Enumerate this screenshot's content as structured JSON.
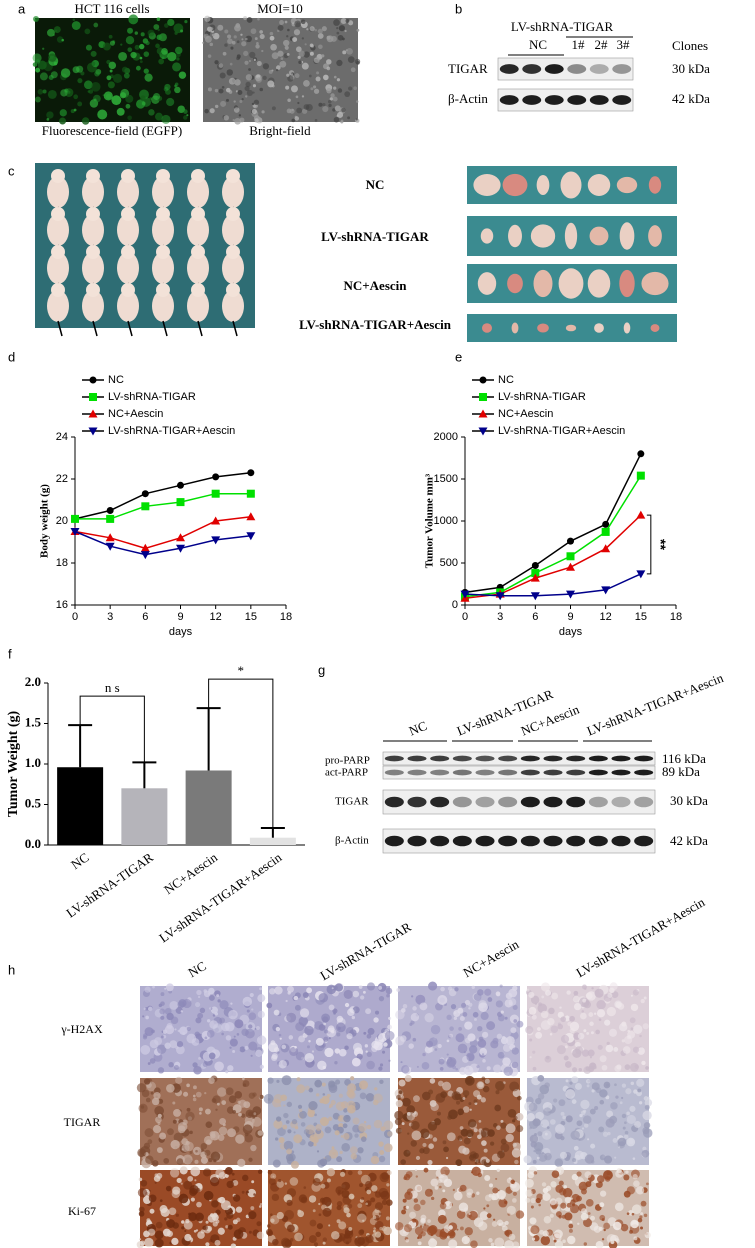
{
  "figure": {
    "a": {
      "label": "a",
      "left_title": "HCT 116 cells",
      "left_caption": "Fluorescence-field (EGFP)",
      "right_title": "MOI=10",
      "right_caption": "Bright-field"
    },
    "b": {
      "label": "b",
      "group": "LV-shRNA-TIGAR",
      "lanes": [
        "NC",
        "1#",
        "2#",
        "3#"
      ],
      "clones": "Clones",
      "rows": [
        "TIGAR",
        "β-Actin"
      ],
      "sizes": [
        "30 kDa",
        "42 kDa"
      ]
    },
    "c": {
      "label": "c",
      "groups": [
        "NC",
        "LV-shRNA-TIGAR",
        "NC+Aescin",
        "LV-shRNA-TIGAR+Aescin"
      ]
    },
    "g": {
      "label": "g",
      "lanes": [
        "NC",
        "LV-shRNA-TIGAR",
        "NC+Aescin",
        "LV-shRNA-TIGAR+Aescin"
      ],
      "rows": [
        "pro-PARP",
        "act-PARP",
        "TIGAR",
        "β-Actin"
      ],
      "sizes": [
        "116 kDa",
        "89 kDa",
        "30 kDa",
        "42 kDa"
      ]
    },
    "h": {
      "label": "h",
      "columns": [
        "NC",
        "LV-shRNA-TIGAR",
        "NC+Aescin",
        "LV-shRNA-TIGAR+Aescin"
      ],
      "rows": [
        "γ-H2AX",
        "TIGAR",
        "Ki-67"
      ]
    }
  },
  "chart_data": [
    {
      "type": "line",
      "panel": "d",
      "x": [
        0,
        3,
        6,
        9,
        12,
        15
      ],
      "xlim": [
        0,
        18
      ],
      "xticks": [
        0,
        3,
        6,
        9,
        12,
        15,
        18
      ],
      "ylim": [
        16,
        24
      ],
      "yticks": [
        16,
        18,
        20,
        22,
        24
      ],
      "x_label": "days",
      "y_label": "Body weight (g)",
      "series": [
        {
          "name": "NC",
          "color": "#000000",
          "marker": "circle",
          "values": [
            20.1,
            20.5,
            21.3,
            21.7,
            22.1,
            22.3
          ]
        },
        {
          "name": "LV-shRNA-TIGAR",
          "color": "#00e000",
          "marker": "square",
          "values": [
            20.1,
            20.1,
            20.7,
            20.9,
            21.3,
            21.3
          ]
        },
        {
          "name": "NC+Aescin",
          "color": "#e00000",
          "marker": "triangle",
          "values": [
            19.5,
            19.2,
            18.7,
            19.2,
            20.0,
            20.2
          ]
        },
        {
          "name": "LV-shRNA-TIGAR+Aescin",
          "color": "#00008b",
          "marker": "triangle-down",
          "values": [
            19.5,
            18.8,
            18.4,
            18.7,
            19.1,
            19.3
          ]
        }
      ]
    },
    {
      "type": "line",
      "panel": "e",
      "x": [
        0,
        3,
        6,
        9,
        12,
        15
      ],
      "xlim": [
        0,
        18
      ],
      "xticks": [
        0,
        3,
        6,
        9,
        12,
        15,
        18
      ],
      "ylim": [
        0,
        2000
      ],
      "yticks": [
        0,
        500,
        1000,
        1500,
        2000
      ],
      "x_label": "days",
      "y_label": "Tumor Volume mm³",
      "annotation": "**",
      "series": [
        {
          "name": "NC",
          "color": "#000000",
          "marker": "circle",
          "values": [
            150,
            210,
            470,
            760,
            960,
            1800
          ]
        },
        {
          "name": "LV-shRNA-TIGAR",
          "color": "#00e000",
          "marker": "square",
          "values": [
            100,
            150,
            380,
            580,
            870,
            1540
          ]
        },
        {
          "name": "NC+Aescin",
          "color": "#e00000",
          "marker": "triangle",
          "values": [
            80,
            130,
            320,
            450,
            670,
            1070
          ]
        },
        {
          "name": "LV-shRNA-TIGAR+Aescin",
          "color": "#00008b",
          "marker": "triangle-down",
          "values": [
            130,
            110,
            110,
            130,
            180,
            370
          ]
        }
      ]
    },
    {
      "type": "bar",
      "panel": "f",
      "categories": [
        "NC",
        "LV-shRNA-TIGAR",
        "NC+Aescin",
        "LV-shRNA-TIGAR+Aescin"
      ],
      "values": [
        0.96,
        0.7,
        0.92,
        0.09
      ],
      "errors": [
        0.52,
        0.32,
        0.77,
        0.12
      ],
      "colors": [
        "#000000",
        "#b5b4ba",
        "#7a7a7a",
        "#e2e2e2"
      ],
      "ylim": [
        0,
        2
      ],
      "yticks": [
        {
          "value": 0,
          "label": "0.0"
        },
        0.5,
        {
          "value": 1,
          "label": "1.0"
        },
        1.5,
        {
          "value": 2,
          "label": "2.0"
        }
      ],
      "y_label": "Tumor Weight (g)",
      "annotations": [
        "n s",
        "*"
      ]
    }
  ]
}
